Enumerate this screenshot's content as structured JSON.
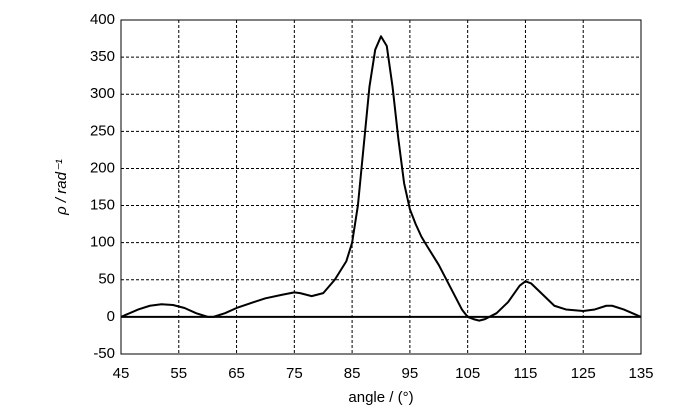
{
  "chart_data": {
    "type": "line",
    "x_label": "angle / (°)",
    "y_label": "ρ / rad⁻¹",
    "x": [
      45,
      48,
      50,
      52,
      54,
      56,
      58,
      60,
      61,
      63,
      65,
      68,
      70,
      73,
      75,
      76,
      78,
      80,
      82,
      84,
      85,
      86,
      87,
      88,
      89,
      90,
      91,
      92,
      93,
      94,
      95,
      96,
      97,
      98,
      100,
      102,
      104,
      105,
      106,
      107,
      108,
      110,
      112,
      114,
      115,
      116,
      118,
      120,
      122,
      125,
      127,
      129,
      130,
      132,
      135
    ],
    "series": [
      {
        "color": "#000000",
        "values": [
          0,
          10,
          15,
          17,
          16,
          12,
          5,
          0,
          0,
          5,
          12,
          20,
          25,
          30,
          33,
          32,
          28,
          32,
          50,
          75,
          100,
          150,
          230,
          310,
          360,
          378,
          365,
          310,
          240,
          180,
          145,
          125,
          108,
          95,
          70,
          40,
          10,
          0,
          -3,
          -5,
          -3,
          5,
          20,
          42,
          48,
          45,
          30,
          15,
          10,
          8,
          10,
          15,
          15,
          10,
          0
        ]
      }
    ],
    "xlim": [
      45,
      135
    ],
    "xticks": [
      45,
      55,
      65,
      75,
      85,
      95,
      105,
      115,
      125,
      135
    ],
    "ylim": [
      -50,
      400
    ],
    "yticks": [
      -50,
      0,
      50,
      100,
      150,
      200,
      250,
      300,
      350,
      400
    ],
    "grid": true
  }
}
